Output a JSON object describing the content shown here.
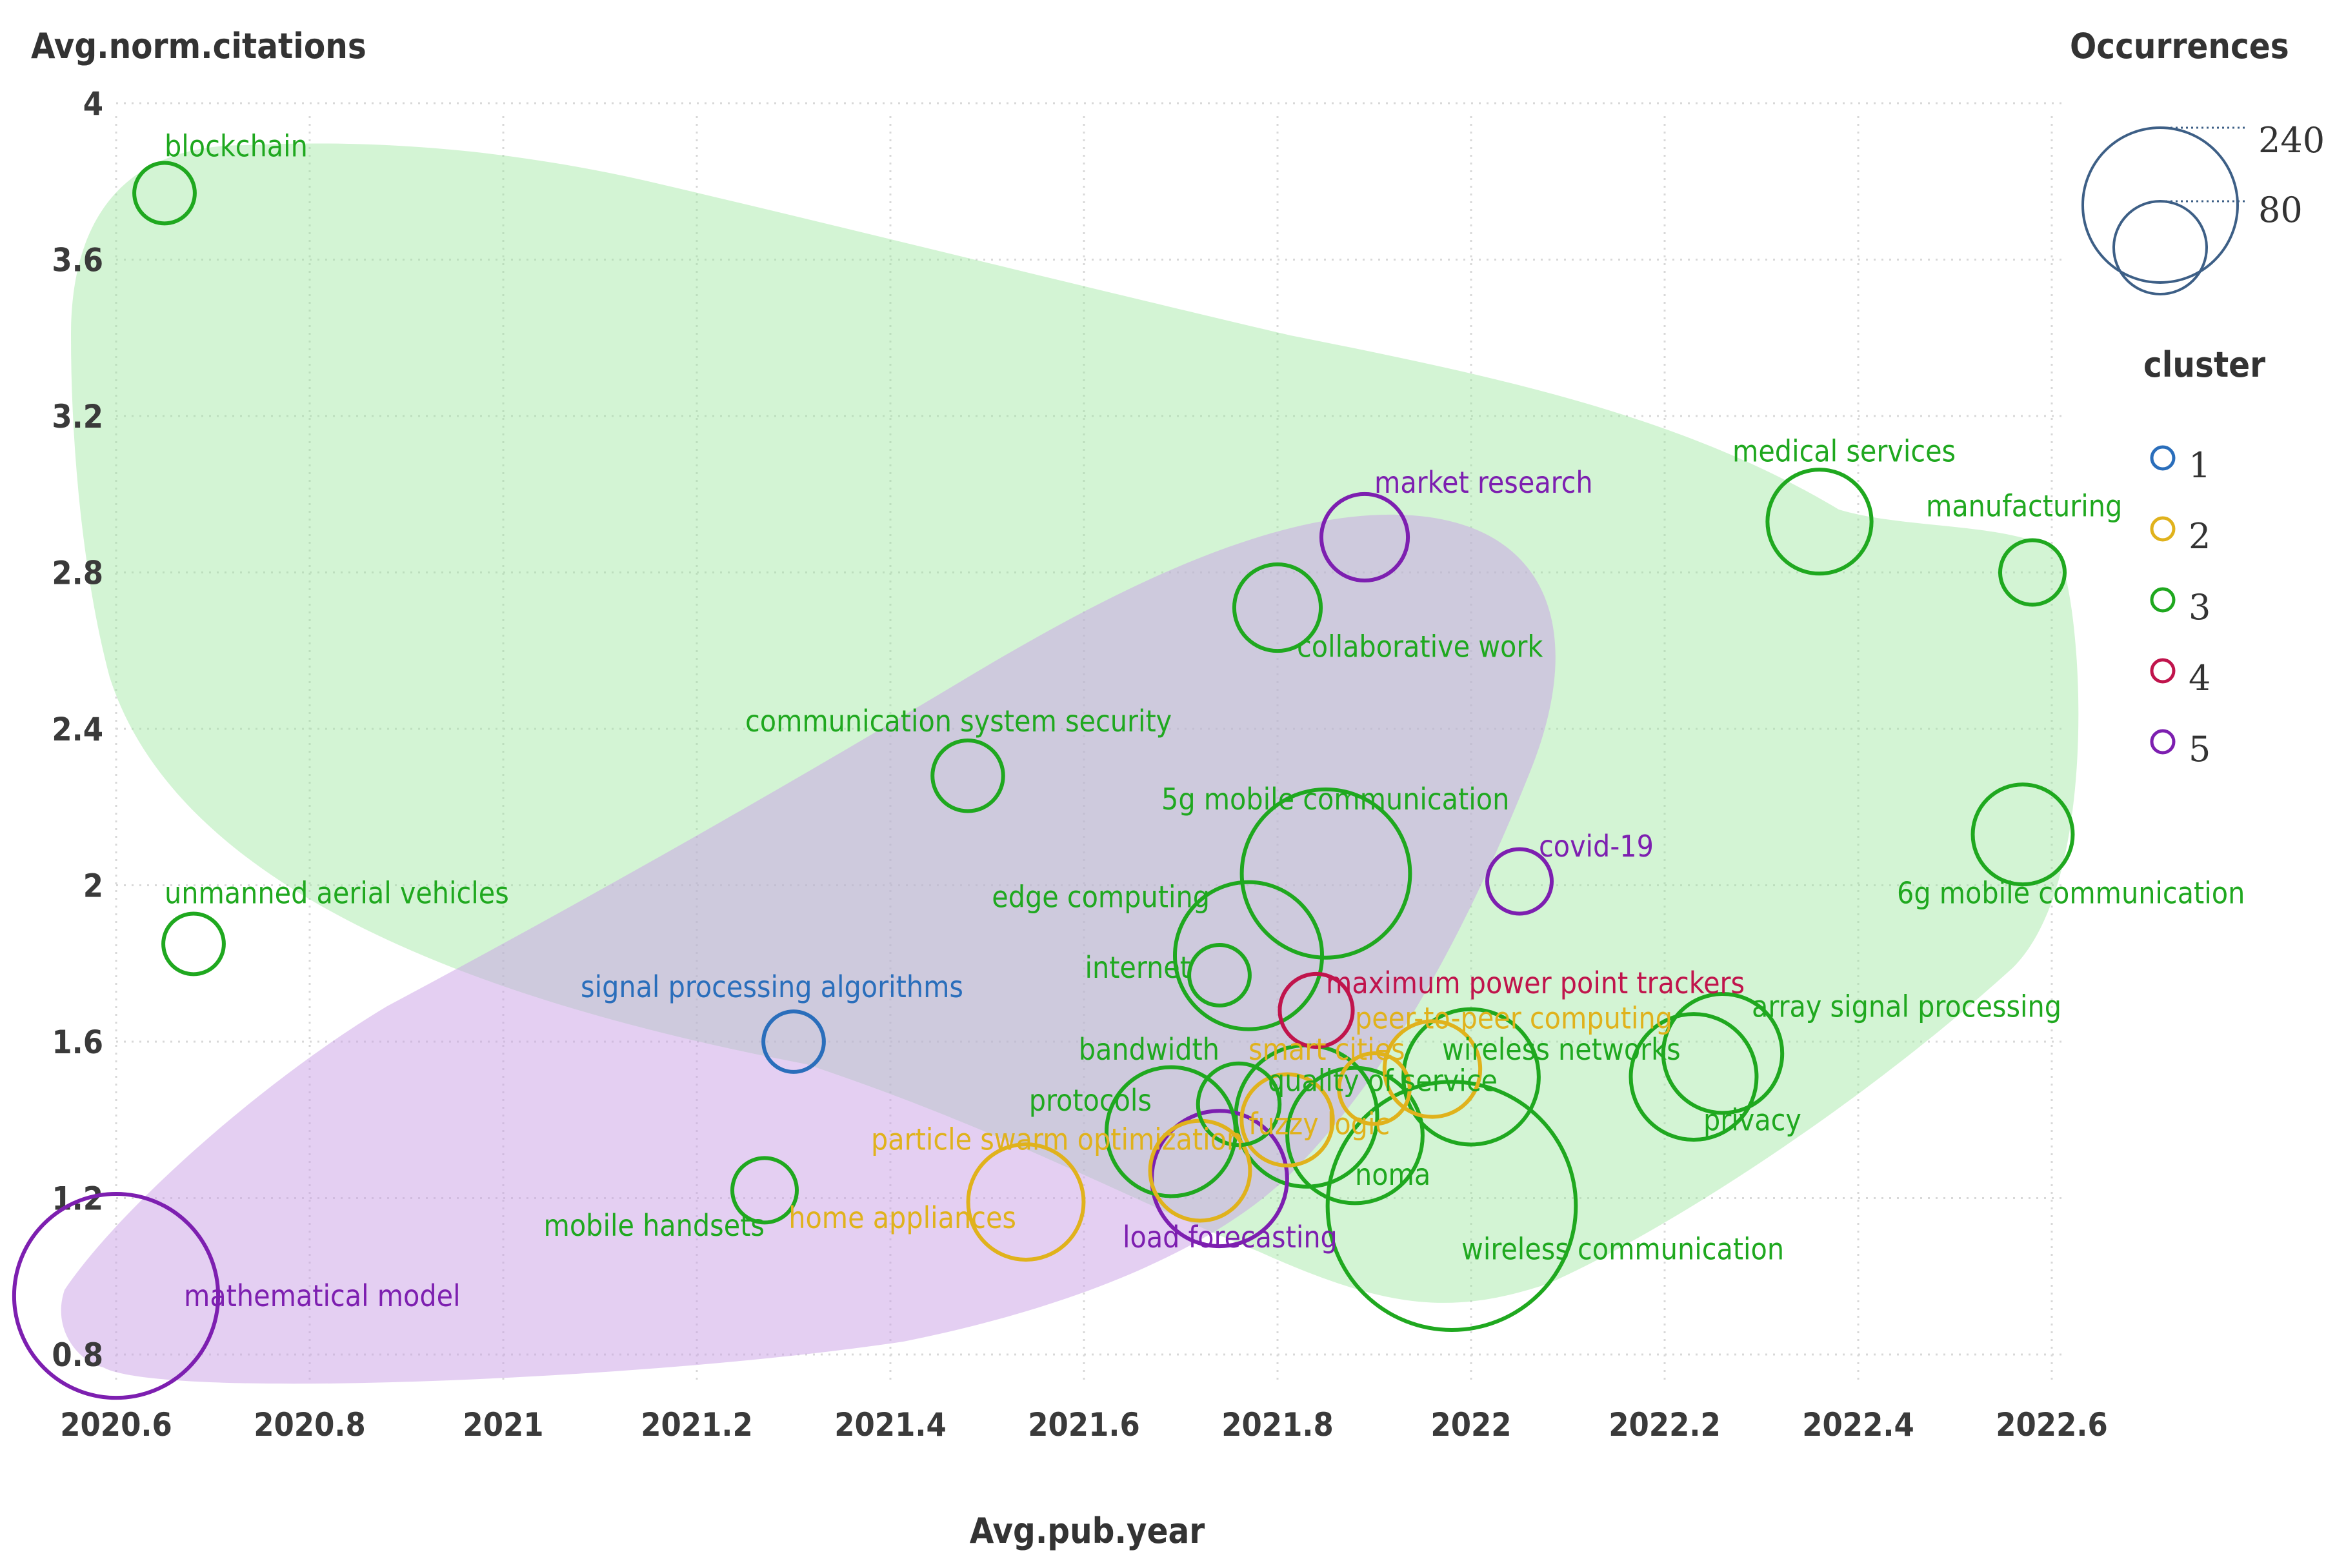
{
  "chart_data": {
    "type": "scatter",
    "title": "",
    "xlabel": "Avg.pub.year",
    "ylabel": "Avg.norm.citations",
    "xlim": [
      2020.55,
      2022.62
    ],
    "ylim": [
      0.72,
      4.08
    ],
    "xticks": [
      {
        "value": 2020.6,
        "label": "2020.6"
      },
      {
        "value": 2020.8,
        "label": "2020.8"
      },
      {
        "value": 2021.0,
        "label": "2021"
      },
      {
        "value": 2021.2,
        "label": "2021.2"
      },
      {
        "value": 2021.4,
        "label": "2021.4"
      },
      {
        "value": 2021.6,
        "label": "2021.6"
      },
      {
        "value": 2021.8,
        "label": "2021.8"
      },
      {
        "value": 2022.0,
        "label": "2022"
      },
      {
        "value": 2022.2,
        "label": "2022.2"
      },
      {
        "value": 2022.4,
        "label": "2022.4"
      },
      {
        "value": 2022.6,
        "label": "2022.6"
      }
    ],
    "yticks": [
      {
        "value": 0.8,
        "label": "0.8"
      },
      {
        "value": 1.2,
        "label": "1.2"
      },
      {
        "value": 1.6,
        "label": "1.6"
      },
      {
        "value": 2.0,
        "label": "2"
      },
      {
        "value": 2.4,
        "label": "2.4"
      },
      {
        "value": 2.8,
        "label": "2.8"
      },
      {
        "value": 3.2,
        "label": "3.2"
      },
      {
        "value": 3.6,
        "label": "3.6"
      },
      {
        "value": 4.0,
        "label": "4"
      }
    ],
    "grid": true,
    "size_legend": {
      "title": "Occurrences",
      "values": [
        240,
        80
      ]
    },
    "cluster_legend": {
      "title": "cluster",
      "items": [
        {
          "label": "1",
          "color": "#2a6ebb"
        },
        {
          "label": "2",
          "color": "#e0b21c"
        },
        {
          "label": "3",
          "color": "#1fa81f"
        },
        {
          "label": "4",
          "color": "#c0144c"
        },
        {
          "label": "5",
          "color": "#7d1fb0"
        }
      ]
    },
    "regions": [
      {
        "cluster": "3",
        "color": "#9ee6a0",
        "opacity": 0.45
      },
      {
        "cluster": "5",
        "color": "#c9a0e6",
        "opacity": 0.5
      }
    ],
    "points": [
      {
        "label": "blockchain",
        "x": 2020.65,
        "y": 3.77,
        "size": 22,
        "cluster": "3",
        "lx": 2020.65,
        "ly": 3.89,
        "anchor": "start"
      },
      {
        "label": "unmanned aerial vehicles",
        "x": 2020.68,
        "y": 1.85,
        "size": 22,
        "cluster": "3",
        "lx": 2020.65,
        "ly": 1.98,
        "anchor": "start"
      },
      {
        "label": "mathematical model",
        "x": 2020.6,
        "y": 0.95,
        "size": 250,
        "cluster": "5",
        "lx": 2020.67,
        "ly": 0.95,
        "anchor": "start"
      },
      {
        "label": "signal processing algorithms",
        "x": 2021.3,
        "y": 1.6,
        "size": 22,
        "cluster": "1",
        "lx": 2021.08,
        "ly": 1.74,
        "anchor": "start"
      },
      {
        "label": "mobile handsets",
        "x": 2021.27,
        "y": 1.22,
        "size": 25,
        "cluster": "3",
        "lx": 2021.27,
        "ly": 1.13,
        "anchor": "end"
      },
      {
        "label": "communication system security",
        "x": 2021.48,
        "y": 2.28,
        "size": 30,
        "cluster": "3",
        "lx": 2021.25,
        "ly": 2.42,
        "anchor": "start"
      },
      {
        "label": "home appliances",
        "x": 2021.54,
        "y": 1.19,
        "size": 80,
        "cluster": "2",
        "lx": 2021.53,
        "ly": 1.15,
        "anchor": "end"
      },
      {
        "label": "particle swarm optimization",
        "x": 2021.72,
        "y": 1.27,
        "size": 60,
        "cluster": "2",
        "lx": 2021.38,
        "ly": 1.35,
        "anchor": "start"
      },
      {
        "label": "protocols",
        "x": 2021.69,
        "y": 1.37,
        "size": 100,
        "cluster": "3",
        "lx": 2021.67,
        "ly": 1.45,
        "anchor": "end"
      },
      {
        "label": "bandwidth",
        "x": 2021.76,
        "y": 1.44,
        "size": 40,
        "cluster": "3",
        "lx": 2021.74,
        "ly": 1.58,
        "anchor": "end"
      },
      {
        "label": "load forecasting",
        "x": 2021.74,
        "y": 1.25,
        "size": 110,
        "cluster": "5",
        "lx": 2021.64,
        "ly": 1.1,
        "anchor": "start"
      },
      {
        "label": "edge computing",
        "x": 2021.77,
        "y": 1.82,
        "size": 130,
        "cluster": "3",
        "lx": 2021.73,
        "ly": 1.97,
        "anchor": "end"
      },
      {
        "label": "internet",
        "x": 2021.74,
        "y": 1.77,
        "size": 22,
        "cluster": "3",
        "lx": 2021.71,
        "ly": 1.79,
        "anchor": "end"
      },
      {
        "label": "collaborative work",
        "x": 2021.8,
        "y": 2.71,
        "size": 45,
        "cluster": "3",
        "lx": 2021.82,
        "ly": 2.61,
        "anchor": "start"
      },
      {
        "label": "market research",
        "x": 2021.89,
        "y": 2.89,
        "size": 45,
        "cluster": "5",
        "lx": 2021.9,
        "ly": 3.03,
        "anchor": "start"
      },
      {
        "label": "5g mobile communication",
        "x": 2021.85,
        "y": 2.03,
        "size": 170,
        "cluster": "3",
        "lx": 2021.68,
        "ly": 2.22,
        "anchor": "start"
      },
      {
        "label": "maximum power point trackers",
        "x": 2021.84,
        "y": 1.68,
        "size": 32,
        "cluster": "4",
        "lx": 2021.85,
        "ly": 1.75,
        "anchor": "start"
      },
      {
        "label": "peer-to-peer computing",
        "x": 2021.96,
        "y": 1.53,
        "size": 55,
        "cluster": "2",
        "lx": 2021.88,
        "ly": 1.66,
        "anchor": "start"
      },
      {
        "label": "smart cities",
        "x": 2021.9,
        "y": 1.48,
        "size": 30,
        "cluster": "2",
        "lx": 2021.77,
        "ly": 1.58,
        "anchor": "start"
      },
      {
        "label": "quality of service",
        "x": 2021.83,
        "y": 1.41,
        "size": 120,
        "cluster": "3",
        "lx": 2021.79,
        "ly": 1.5,
        "anchor": "start"
      },
      {
        "label": "fuzzy logic",
        "x": 2021.81,
        "y": 1.4,
        "size": 50,
        "cluster": "2",
        "lx": 2021.77,
        "ly": 1.39,
        "anchor": "start"
      },
      {
        "label": "noma",
        "x": 2021.88,
        "y": 1.36,
        "size": 110,
        "cluster": "3",
        "lx": 2021.88,
        "ly": 1.26,
        "anchor": "start"
      },
      {
        "label": "wireless networks",
        "x": 2022.0,
        "y": 1.51,
        "size": 110,
        "cluster": "3",
        "lx": 2021.97,
        "ly": 1.58,
        "anchor": "start"
      },
      {
        "label": "wireless communication",
        "x": 2021.98,
        "y": 1.18,
        "size": 370,
        "cluster": "3",
        "lx": 2021.99,
        "ly": 1.07,
        "anchor": "start"
      },
      {
        "label": "covid-19",
        "x": 2022.05,
        "y": 2.01,
        "size": 25,
        "cluster": "5",
        "lx": 2022.07,
        "ly": 2.1,
        "anchor": "start"
      },
      {
        "label": "array signal processing",
        "x": 2022.26,
        "y": 1.57,
        "size": 85,
        "cluster": "3",
        "lx": 2022.29,
        "ly": 1.69,
        "anchor": "start"
      },
      {
        "label": "privacy",
        "x": 2022.23,
        "y": 1.51,
        "size": 95,
        "cluster": "3",
        "lx": 2022.24,
        "ly": 1.4,
        "anchor": "start"
      },
      {
        "label": "medical services",
        "x": 2022.36,
        "y": 2.93,
        "size": 65,
        "cluster": "3",
        "lx": 2022.27,
        "ly": 3.11,
        "anchor": "start"
      },
      {
        "label": "manufacturing",
        "x": 2022.58,
        "y": 2.8,
        "size": 25,
        "cluster": "3",
        "lx": 2022.47,
        "ly": 2.97,
        "anchor": "start"
      },
      {
        "label": "6g mobile communication",
        "x": 2022.57,
        "y": 2.13,
        "size": 60,
        "cluster": "3",
        "lx": 2022.44,
        "ly": 1.98,
        "anchor": "start"
      }
    ]
  }
}
